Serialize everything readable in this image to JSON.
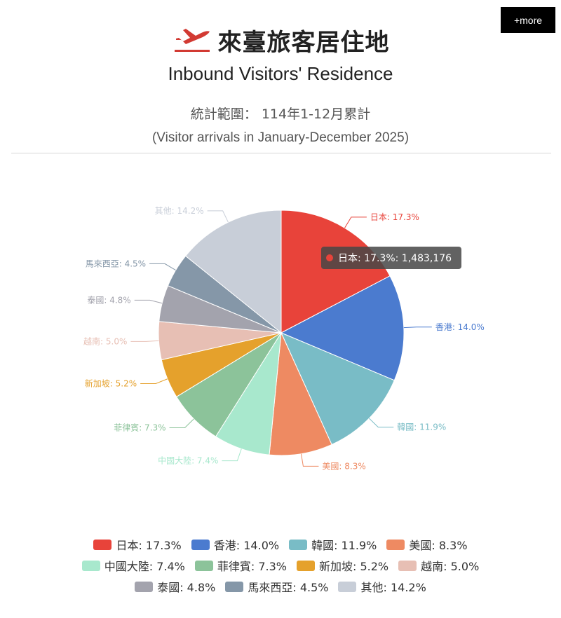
{
  "header": {
    "more_label": "+more",
    "title_zh": "來臺旅客居住地",
    "title_en": "Inbound Visitors' Residence",
    "subtitle_zh": "統計範圍： 114年1-12月累計",
    "subtitle_en": "(Visitor arrivals in January-December 2025)"
  },
  "tooltip": {
    "text": "日本: 17.3%: 1,483,176"
  },
  "chart_data": {
    "type": "pie",
    "legend_position": "bottom",
    "slices": [
      {
        "name": "日本",
        "percent": 17.3,
        "label": "日本: 17.3%",
        "color": "#e8433a"
      },
      {
        "name": "香港",
        "percent": 14.0,
        "label": "香港: 14.0%",
        "color": "#4b7bcf"
      },
      {
        "name": "韓國",
        "percent": 11.9,
        "label": "韓國: 11.9%",
        "color": "#79bcc6"
      },
      {
        "name": "美國",
        "percent": 8.3,
        "label": "美國: 8.3%",
        "color": "#ee8a62"
      },
      {
        "name": "中國大陸",
        "percent": 7.4,
        "label": "中國大陸: 7.4%",
        "color": "#a8e8cd"
      },
      {
        "name": "菲律賓",
        "percent": 7.3,
        "label": "菲律賓: 7.3%",
        "color": "#8cc39a"
      },
      {
        "name": "新加坡",
        "percent": 5.2,
        "label": "新加坡: 5.2%",
        "color": "#e5a12c"
      },
      {
        "name": "越南",
        "percent": 5.0,
        "label": "越南: 5.0%",
        "color": "#e7bfb4"
      },
      {
        "name": "泰國",
        "percent": 4.8,
        "label": "泰國: 4.8%",
        "color": "#a3a3ad"
      },
      {
        "name": "馬來西亞",
        "percent": 4.5,
        "label": "馬來西亞: 4.5%",
        "color": "#8597a8"
      },
      {
        "name": "其他",
        "percent": 14.2,
        "label": "其他: 14.2%",
        "color": "#c8ced8"
      }
    ]
  }
}
